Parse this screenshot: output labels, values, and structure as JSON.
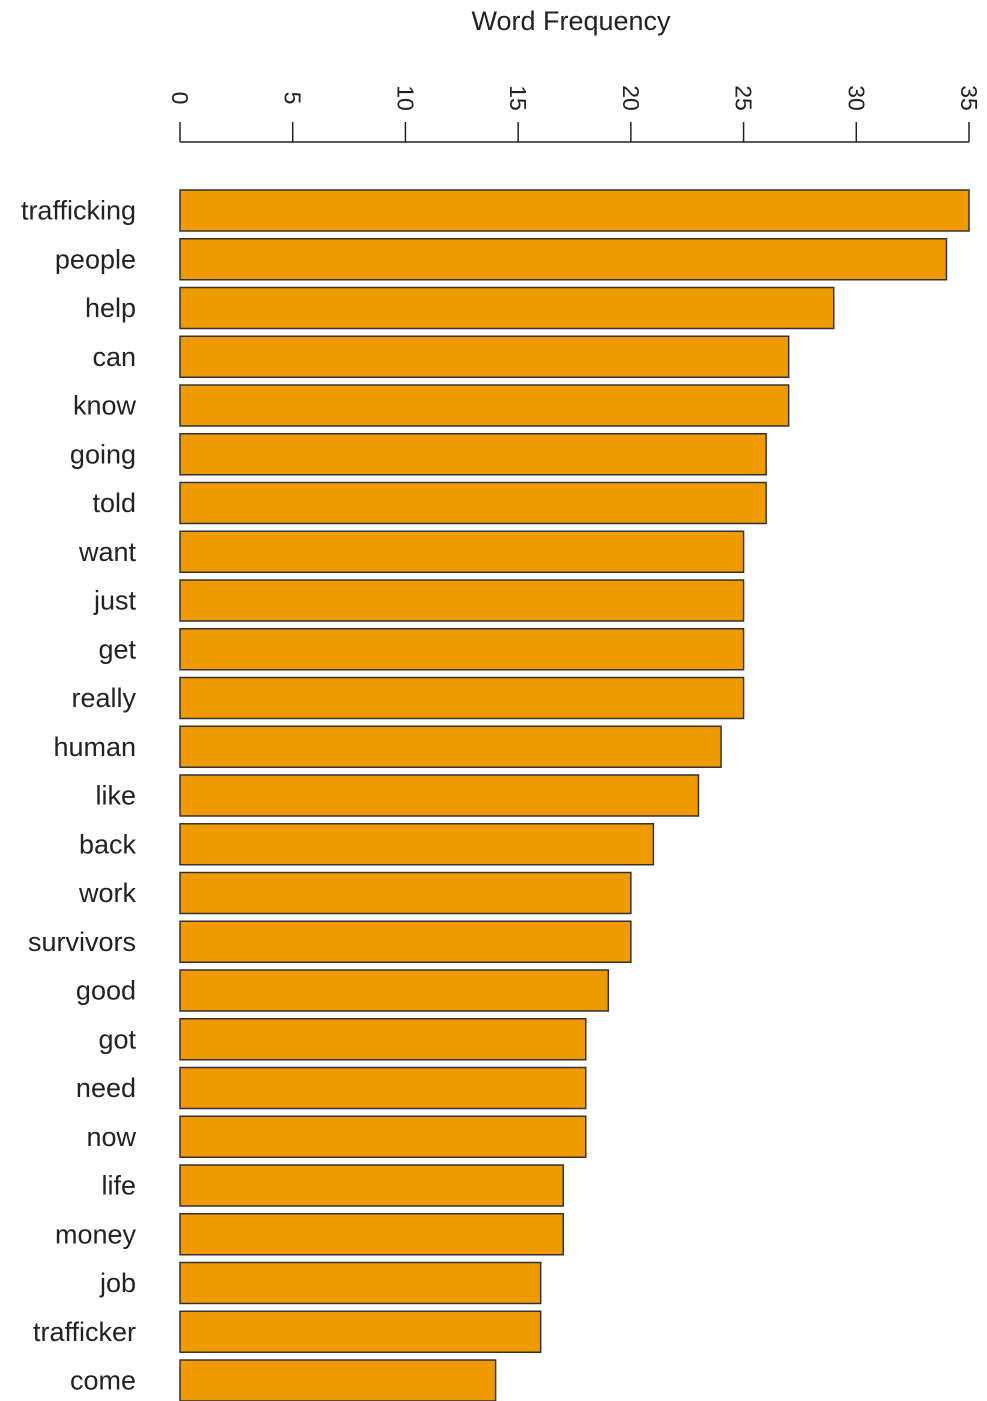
{
  "chart_data": {
    "type": "bar",
    "orientation": "horizontal",
    "xlabel": "Word Frequency",
    "ylabel": "",
    "axis_position": "top",
    "xlim": [
      0,
      35
    ],
    "ticks": [
      0,
      5,
      10,
      15,
      20,
      25,
      30,
      35
    ],
    "tick_labels": [
      "0",
      "5",
      "10",
      "15",
      "20",
      "25",
      "30",
      "35"
    ],
    "grid": false,
    "bar_color": "#EE9A00",
    "bar_border_color": "#333333",
    "categories": [
      "trafficking",
      "people",
      "help",
      "can",
      "know",
      "going",
      "told",
      "want",
      "just",
      "get",
      "really",
      "human",
      "like",
      "back",
      "work",
      "survivors",
      "good",
      "got",
      "need",
      "now",
      "life",
      "money",
      "job",
      "trafficker",
      "come"
    ],
    "values": [
      35,
      34,
      29,
      27,
      27,
      26,
      26,
      25,
      25,
      25,
      25,
      24,
      23,
      21,
      20,
      20,
      19,
      18,
      18,
      18,
      17,
      17,
      16,
      16,
      14
    ]
  }
}
